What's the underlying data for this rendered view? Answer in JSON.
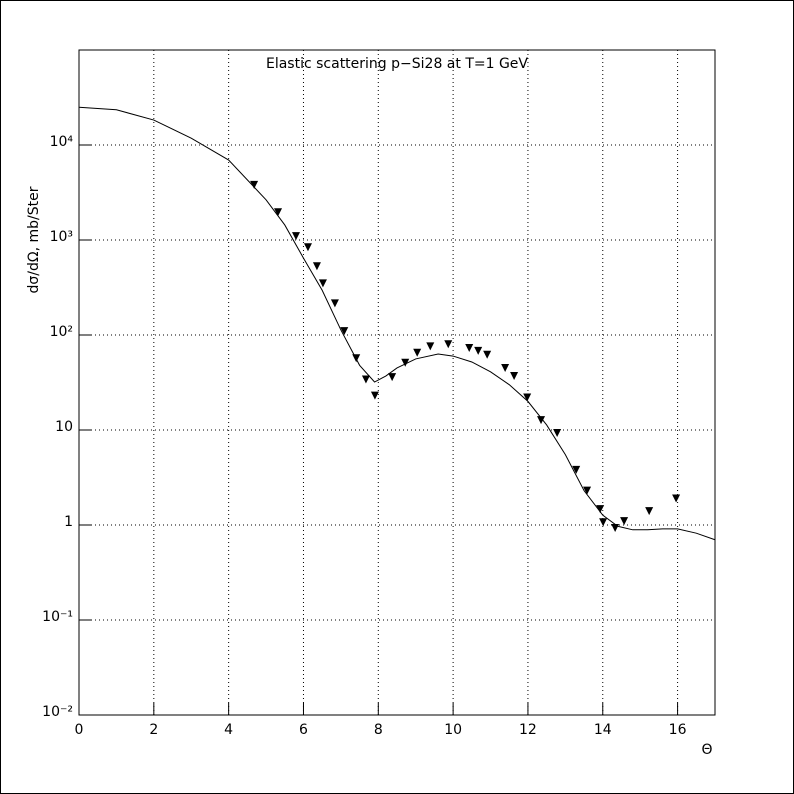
{
  "chart_data": {
    "type": "scatter-line",
    "title": "Elastic scattering p−Si28 at T=1 GeV",
    "x_label": "Θ",
    "y_label": "dσ/dΩ, mb/Ster",
    "xlim": [
      0,
      17
    ],
    "xticks": [
      0,
      2,
      4,
      6,
      8,
      10,
      12,
      14,
      16
    ],
    "ylim": [
      0.01,
      100000
    ],
    "y_log": true,
    "yticks": [
      {
        "value": 0.01,
        "label": "10⁻²"
      },
      {
        "value": 0.1,
        "label": "10⁻¹"
      },
      1,
      10,
      {
        "value": 100,
        "label": "10²"
      },
      {
        "value": 1000,
        "label": "10³"
      },
      {
        "value": 10000,
        "label": "10⁴"
      }
    ],
    "grid": true,
    "series": [
      {
        "kind": "line",
        "color": "#000000",
        "x": [
          0,
          1,
          2,
          3,
          4,
          5,
          5.5,
          6,
          6.5,
          7,
          7.5,
          7.9,
          8.2,
          8.5,
          9,
          9.6,
          10,
          10.5,
          11,
          11.5,
          12,
          12.5,
          13,
          13.5,
          14,
          14.4,
          14.8,
          15.2,
          15.6,
          16,
          16.5,
          17
        ],
        "values": [
          25000,
          23500,
          18300,
          11800,
          6950,
          2650,
          1440,
          645,
          296,
          113,
          48,
          32,
          37,
          45,
          56,
          63,
          60,
          52,
          41,
          30,
          20,
          11.3,
          5.5,
          2.3,
          1.27,
          0.97,
          0.89,
          0.89,
          0.91,
          0.91,
          0.82,
          0.7
        ]
      },
      {
        "kind": "triangle-down",
        "color": "#000000",
        "x": [
          4.68,
          5.32,
          5.8,
          6.12,
          6.36,
          6.52,
          6.84,
          7.09,
          7.41,
          7.67,
          7.91,
          8.37,
          8.72,
          9.04,
          9.39,
          9.87,
          10.43,
          10.67,
          10.91,
          11.39,
          11.63,
          11.98,
          12.35,
          12.78,
          13.29,
          13.58,
          13.93,
          14.01,
          14.33,
          14.57,
          15.24,
          15.96
        ],
        "values": [
          3800,
          1960,
          1100,
          840,
          530,
          350,
          215,
          110,
          57,
          34,
          23,
          36,
          51,
          65,
          76,
          80,
          73,
          68,
          62,
          45,
          37,
          22,
          12.7,
          9.3,
          3.8,
          2.3,
          1.47,
          1.07,
          0.93,
          1.1,
          1.4,
          1.9
        ]
      }
    ]
  }
}
